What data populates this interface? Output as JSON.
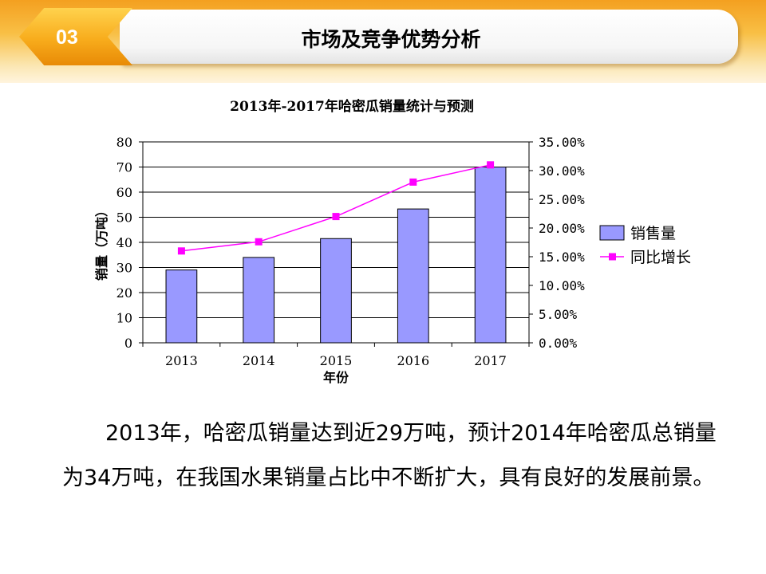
{
  "header": {
    "section_number": "03",
    "title": "市场及竞争优势分析"
  },
  "chart_data": {
    "type": "bar",
    "title": "2013年-2017年哈密瓜销量统计与预测",
    "xlabel": "年份",
    "ylabel": "销量（万吨）",
    "categories": [
      "2013",
      "2014",
      "2015",
      "2016",
      "2017"
    ],
    "series": [
      {
        "name": "销售量",
        "type": "bar",
        "axis": "left",
        "values": [
          29,
          34,
          41.5,
          53.3,
          70
        ],
        "color": "#9999ff"
      },
      {
        "name": "同比增长",
        "type": "line",
        "axis": "right",
        "values": [
          0.16,
          0.176,
          0.22,
          0.28,
          0.31
        ],
        "color": "#ff00ff"
      }
    ],
    "ylim": [
      0,
      80
    ],
    "yticks": [
      "0",
      "10",
      "20",
      "30",
      "40",
      "50",
      "60",
      "70",
      "80"
    ],
    "y2lim": [
      0,
      0.35
    ],
    "y2ticks": [
      "0.00%",
      "5.00%",
      "10.00%",
      "15.00%",
      "20.00%",
      "25.00%",
      "30.00%",
      "35.00%"
    ],
    "grid": "horizontal",
    "legend": "right"
  },
  "body": {
    "paragraph": "2013年，哈密瓜销量达到近29万吨，预计2014年哈密瓜总销量为34万吨，在我国水果销量占比中不断扩大，具有良好的发展前景。"
  }
}
